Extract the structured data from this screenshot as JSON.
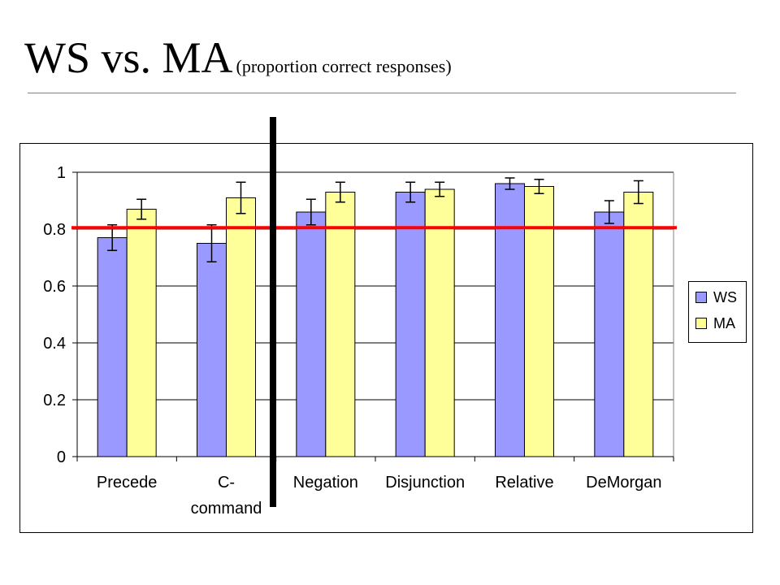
{
  "title": {
    "main": "WS vs. MA",
    "subtitle": "(proportion correct responses)"
  },
  "colors": {
    "ws": "#9999ff",
    "ma": "#ffff99",
    "reference_line": "#ff0000",
    "divider": "#000000",
    "grid": "#000000"
  },
  "chart_data": {
    "type": "bar",
    "categories": [
      [
        "Precede"
      ],
      [
        "C-",
        "command"
      ],
      [
        "Negation"
      ],
      [
        "Disjunction"
      ],
      [
        "Relative"
      ],
      [
        "DeMorgan"
      ]
    ],
    "series": [
      {
        "name": "WS",
        "values": [
          0.77,
          0.75,
          0.86,
          0.93,
          0.96,
          0.86
        ],
        "errors": [
          0.045,
          0.065,
          0.045,
          0.035,
          0.02,
          0.04
        ]
      },
      {
        "name": "MA",
        "values": [
          0.87,
          0.91,
          0.93,
          0.94,
          0.95,
          0.93
        ],
        "errors": [
          0.035,
          0.055,
          0.035,
          0.025,
          0.025,
          0.04
        ]
      }
    ],
    "ylim": [
      0,
      1
    ],
    "yticks": [
      "0",
      "0.2",
      "0.4",
      "0.6",
      "0.8",
      "1"
    ],
    "grid": true,
    "legend_position": "right",
    "reference_line_y": 0.805
  },
  "legend": {
    "items": [
      {
        "label": "WS"
      },
      {
        "label": "MA"
      }
    ]
  }
}
